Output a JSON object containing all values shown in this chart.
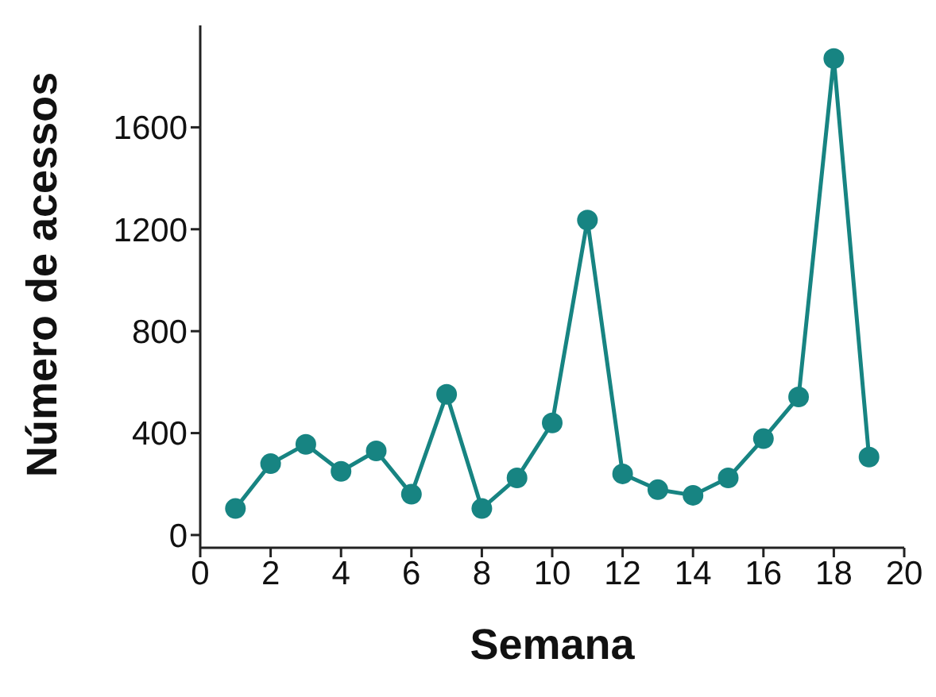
{
  "chart_data": {
    "type": "line",
    "xlabel": "Semana",
    "ylabel": "Número de acessos",
    "x": [
      1,
      2,
      3,
      4,
      5,
      6,
      7,
      8,
      9,
      10,
      11,
      12,
      13,
      14,
      15,
      16,
      17,
      18,
      19
    ],
    "series": [
      {
        "color": "#178482",
        "values": [
          104,
          280,
          356,
          250,
          330,
          160,
          552,
          104,
          224,
          440,
          1236,
          240,
          178,
          156,
          224,
          378,
          542,
          1870,
          306
        ]
      }
    ],
    "xlim": [
      0,
      20
    ],
    "xticks": [
      0,
      2,
      4,
      6,
      8,
      10,
      12,
      14,
      16,
      18,
      20
    ],
    "ylim": [
      -50,
      2000
    ],
    "yticks": [
      0,
      400,
      800,
      1200,
      1600
    ],
    "grid": false,
    "legend": false,
    "marker": "circle",
    "line_style": "solid"
  }
}
